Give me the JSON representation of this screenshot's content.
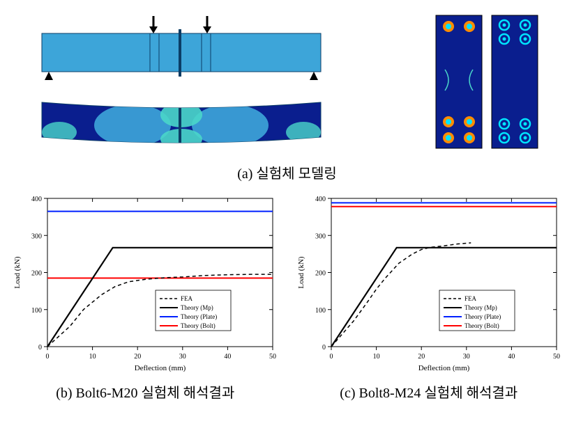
{
  "captions": {
    "a": "(a) 실험체 모델링",
    "b": "(b) Bolt6-M20 실험체 해석결과",
    "c": "(c) Bolt8-M24 실험체 해석결과"
  },
  "beam_colors": {
    "fill_main": "#3da5d9",
    "stroke": "#0b3d66",
    "dark_blue": "#0a1e5e",
    "cyan": "#4ad6c9",
    "arrow": "#000000"
  },
  "bolt_plate_colors": {
    "bg": "#0a1e8e",
    "bolt_ring": "#ffa500",
    "bolt_center": "#00e5ff",
    "stroke": "#000000"
  },
  "chart_style": {
    "background_color": "#ffffff",
    "axis_color": "#000000",
    "grid_color": "#000000",
    "xlabel": "Deflection (mm)",
    "ylabel": "Load (kN)",
    "xlim": [
      0,
      50
    ],
    "ylim": [
      0,
      400
    ],
    "xticks": [
      0,
      10,
      20,
      30,
      40,
      50
    ],
    "yticks": [
      0,
      100,
      200,
      300,
      400
    ],
    "label_fontsize": 11,
    "tick_fontsize": 10,
    "line_width": 1.5
  },
  "legend": {
    "items": [
      {
        "label": "FEA",
        "color": "#000000",
        "dash": "4,3",
        "width": 1.5
      },
      {
        "label": "Theory (Mp)",
        "color": "#000000",
        "dash": "0",
        "width": 2
      },
      {
        "label": "Theory (Plate)",
        "color": "#0020ff",
        "dash": "0",
        "width": 2
      },
      {
        "label": "Theory (Bolt)",
        "color": "#ff0000",
        "dash": "0",
        "width": 2
      }
    ],
    "border_color": "#000000"
  },
  "chart_b": {
    "fea": [
      [
        0,
        0
      ],
      [
        5,
        55
      ],
      [
        8,
        100
      ],
      [
        10,
        120
      ],
      [
        12,
        140
      ],
      [
        15,
        162
      ],
      [
        18,
        175
      ],
      [
        22,
        182
      ],
      [
        26,
        186
      ],
      [
        30,
        188
      ],
      [
        35,
        192
      ],
      [
        40,
        194
      ],
      [
        45,
        195
      ],
      [
        50,
        195
      ]
    ],
    "theory_mp": [
      [
        0,
        0
      ],
      [
        14.5,
        267
      ],
      [
        50,
        267
      ]
    ],
    "theory_plate_y": 365,
    "theory_bolt_y": 185
  },
  "chart_c": {
    "fea": [
      [
        0,
        0
      ],
      [
        5,
        70
      ],
      [
        8,
        120
      ],
      [
        10,
        155
      ],
      [
        12,
        185
      ],
      [
        15,
        225
      ],
      [
        18,
        250
      ],
      [
        20,
        262
      ],
      [
        22,
        268
      ],
      [
        25,
        272
      ],
      [
        28,
        277
      ],
      [
        31,
        280
      ]
    ],
    "theory_mp": [
      [
        0,
        0
      ],
      [
        14.5,
        267
      ],
      [
        50,
        267
      ]
    ],
    "theory_plate_y": 388,
    "theory_bolt_y": 378
  }
}
